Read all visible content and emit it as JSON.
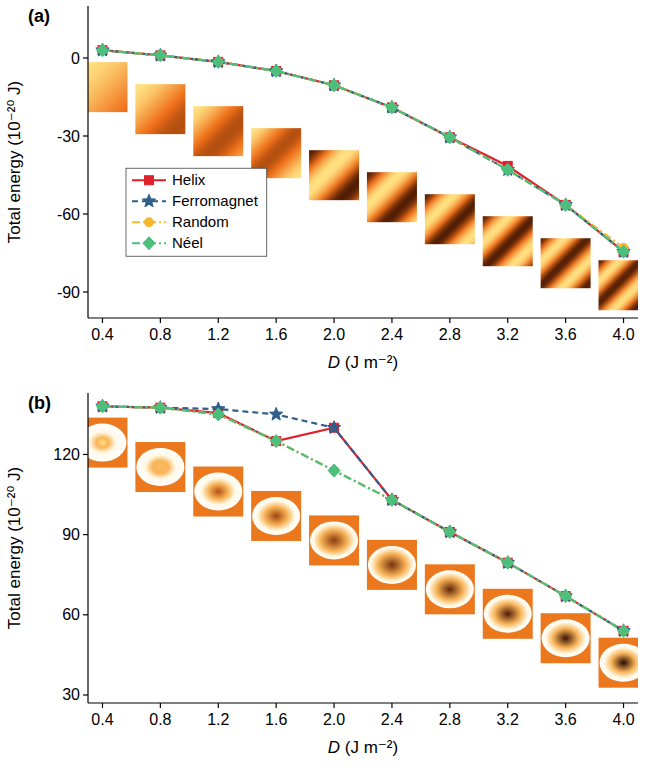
{
  "chart_data": [
    {
      "type": "line",
      "title": "(a)",
      "xlabel": "D (J m⁻²)",
      "ylabel": "Total energy (10⁻²⁰ J)",
      "x": [
        0.4,
        0.8,
        1.2,
        1.6,
        2,
        2.4,
        2.8,
        3.2,
        3.6,
        4
      ],
      "xlim": [
        0.3,
        4.1
      ],
      "xticks": [
        0.4,
        0.8,
        1.2,
        1.6,
        {
          "value": 2,
          "label": "2.0"
        },
        2.4,
        2.8,
        3.2,
        3.6,
        {
          "value": 4,
          "label": "4.0"
        }
      ],
      "ylim": [
        -100,
        20
      ],
      "yticks": [
        -90,
        -60,
        -30,
        0
      ],
      "legend": "left",
      "series": [
        {
          "name": "Helix",
          "color": "#e0202a",
          "marker": "square",
          "line_style": "solid",
          "values": [
            3,
            1,
            -1.5,
            -5,
            -10.5,
            -19,
            -30.5,
            -41.5,
            -56.5,
            -74.5
          ]
        },
        {
          "name": "Ferromagnet",
          "color": "#2f5f8a",
          "marker": "star",
          "line_style": "dashed",
          "values": [
            3,
            1,
            -1.5,
            -5,
            -10.5,
            -19,
            -30.5,
            -43,
            -56.5,
            -74.5
          ]
        },
        {
          "name": "Random",
          "color": "#f5b82e",
          "marker": "circle",
          "line_style": "dashdot",
          "values": [
            3,
            1,
            -1.5,
            -5,
            -10.5,
            -19,
            -30.5,
            -43,
            -56.5,
            -73
          ]
        },
        {
          "name": "Néel",
          "color": "#4cbf7c",
          "marker": "diamond",
          "line_style": "dashdot",
          "values": [
            3,
            1,
            -1.5,
            -5,
            -10.5,
            -19,
            -30.5,
            -43,
            -56.5,
            -74.5
          ]
        }
      ]
    },
    {
      "type": "line",
      "title": "(b)",
      "xlabel": "D (J m⁻²)",
      "ylabel": "Total energy (10⁻²⁰ J)",
      "x": [
        0.4,
        0.8,
        1.2,
        1.6,
        2,
        2.4,
        2.8,
        3.2,
        3.6,
        4
      ],
      "xlim": [
        0.3,
        4.1
      ],
      "xticks": [
        0.4,
        0.8,
        1.2,
        1.6,
        {
          "value": 2,
          "label": "2.0"
        },
        2.4,
        2.8,
        3.2,
        3.6,
        {
          "value": 4,
          "label": "4.0"
        }
      ],
      "ylim": [
        27,
        143
      ],
      "yticks": [
        30,
        60,
        90,
        120
      ],
      "series": [
        {
          "color": "#e0202a",
          "marker": "square",
          "line_style": "solid",
          "values": [
            138,
            137.5,
            135.5,
            125,
            130,
            103,
            91,
            79.5,
            67,
            54
          ]
        },
        {
          "color": "#2f5f8a",
          "marker": "star",
          "line_style": "dashed",
          "values": [
            138,
            137.5,
            137,
            135,
            130,
            103,
            91,
            79.5,
            67,
            54
          ]
        },
        {
          "color": "#f5b82e",
          "marker": "circle",
          "line_style": "dashdot",
          "values": [
            138,
            137.5,
            135,
            125,
            114,
            103,
            91,
            79.5,
            67,
            54
          ]
        },
        {
          "color": "#4cbf7c",
          "marker": "diamond",
          "line_style": "dashdot",
          "values": [
            138,
            137.5,
            135,
            125,
            114,
            103,
            91,
            79.5,
            67,
            54
          ]
        }
      ]
    }
  ]
}
